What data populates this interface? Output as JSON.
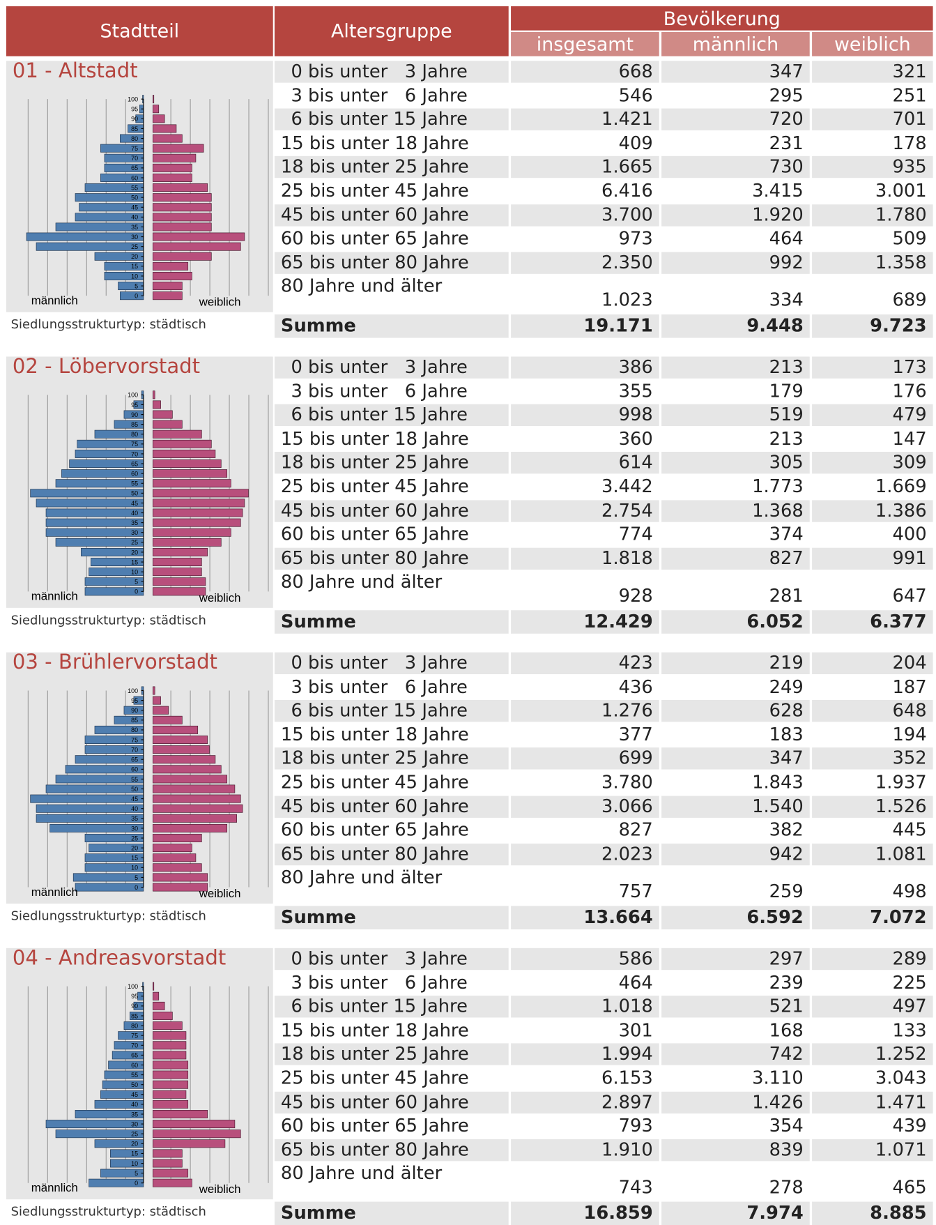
{
  "header": {
    "stadtteil": "Stadtteil",
    "altersgruppe": "Altersgruppe",
    "bevoelkerung": "Bevölkerung",
    "insgesamt": "insgesamt",
    "maennlich": "männlich",
    "weiblich": "weiblich"
  },
  "districts": [
    {
      "name": "01 - Altstadt",
      "structure": "Siedlungsstrukturtyp: städtisch",
      "rows": [
        [
          "0 bis unter   3 Jahre",
          "668",
          "347",
          "321"
        ],
        [
          "3 bis unter   6 Jahre",
          "546",
          "295",
          "251"
        ],
        [
          "6 bis unter 15 Jahre",
          "1.421",
          "720",
          "701"
        ],
        [
          "15 bis unter 18 Jahre",
          "409",
          "231",
          "178"
        ],
        [
          "18 bis unter 25 Jahre",
          "1.665",
          "730",
          "935"
        ],
        [
          "25 bis unter 45 Jahre",
          "6.416",
          "3.415",
          "3.001"
        ],
        [
          "45 bis unter 60 Jahre",
          "3.700",
          "1.920",
          "1.780"
        ],
        [
          "60 bis unter 65 Jahre",
          "973",
          "464",
          "509"
        ],
        [
          "65 bis unter 80 Jahre",
          "2.350",
          "992",
          "1.358"
        ],
        [
          "80 Jahre und älter",
          "1.023",
          "334",
          "689"
        ]
      ],
      "sum": [
        "Summe",
        "19.171",
        "9.448",
        "9.723"
      ],
      "pyramid": {
        "type": "pyramid",
        "male_label": "männlich",
        "female_label": "weiblich",
        "ylim": [
          0,
          100
        ],
        "yticks": [
          0,
          5,
          10,
          15,
          20,
          25,
          30,
          35,
          40,
          45,
          50,
          55,
          60,
          65,
          70,
          75,
          80,
          85,
          90,
          95,
          100
        ],
        "xlim": [
          0,
          6.5
        ],
        "xgrid": [
          1,
          2,
          3,
          4,
          5,
          6
        ],
        "male": [
          1.2,
          1.3,
          2,
          2,
          2.5,
          5.5,
          6,
          4.5,
          3.5,
          3.3,
          3.5,
          3,
          2.2,
          2,
          2,
          2.2,
          1.2,
          0.8,
          0.4,
          0.2,
          0.05
        ],
        "female": [
          1.5,
          1.5,
          2,
          1.8,
          3,
          4.5,
          4.7,
          3,
          3,
          3,
          3,
          2.8,
          2,
          2,
          2.2,
          2.6,
          1.5,
          1.2,
          0.6,
          0.3,
          0.05
        ]
      }
    },
    {
      "name": "02 - Löbervorstadt",
      "structure": "Siedlungsstrukturtyp: städtisch",
      "rows": [
        [
          "0 bis unter   3 Jahre",
          "386",
          "213",
          "173"
        ],
        [
          "3 bis unter   6 Jahre",
          "355",
          "179",
          "176"
        ],
        [
          "6 bis unter 15 Jahre",
          "998",
          "519",
          "479"
        ],
        [
          "15 bis unter 18 Jahre",
          "360",
          "213",
          "147"
        ],
        [
          "18 bis unter 25 Jahre",
          "614",
          "305",
          "309"
        ],
        [
          "25 bis unter 45 Jahre",
          "3.442",
          "1.773",
          "1.669"
        ],
        [
          "45 bis unter 60 Jahre",
          "2.754",
          "1.368",
          "1.386"
        ],
        [
          "60 bis unter 65 Jahre",
          "774",
          "374",
          "400"
        ],
        [
          "65 bis unter 80 Jahre",
          "1.818",
          "827",
          "991"
        ],
        [
          "80 Jahre und älter",
          "928",
          "281",
          "647"
        ]
      ],
      "sum": [
        "Summe",
        "12.429",
        "6.052",
        "6.377"
      ],
      "pyramid": {
        "type": "pyramid",
        "male_label": "männlich",
        "female_label": "weiblich",
        "ylim": [
          0,
          100
        ],
        "yticks": [
          0,
          5,
          10,
          15,
          20,
          25,
          30,
          35,
          40,
          45,
          50,
          55,
          60,
          65,
          70,
          75,
          80,
          85,
          90,
          95,
          100
        ],
        "xlim": [
          0,
          6.5
        ],
        "xgrid": [
          1,
          2,
          3,
          4,
          5,
          6
        ],
        "male": [
          3,
          3,
          2.8,
          2.7,
          3.2,
          4.5,
          5,
          5,
          5,
          5.5,
          5.8,
          4.5,
          4.2,
          3.8,
          3.5,
          3.4,
          2.5,
          1.5,
          1,
          0.5,
          0.1
        ],
        "female": [
          2.7,
          2.7,
          2.5,
          2.5,
          2.8,
          3.5,
          4,
          4.5,
          4.6,
          4.7,
          4.9,
          4,
          3.8,
          3.5,
          3.2,
          3,
          2.5,
          1.5,
          1,
          0.4,
          0.1
        ]
      }
    },
    {
      "name": "03 - Brühlervorstadt",
      "structure": "Siedlungsstrukturtyp: städtisch",
      "rows": [
        [
          "0 bis unter   3 Jahre",
          "423",
          "219",
          "204"
        ],
        [
          "3 bis unter   6 Jahre",
          "436",
          "249",
          "187"
        ],
        [
          "6 bis unter 15 Jahre",
          "1.276",
          "628",
          "648"
        ],
        [
          "15 bis unter 18 Jahre",
          "377",
          "183",
          "194"
        ],
        [
          "18 bis unter 25 Jahre",
          "699",
          "347",
          "352"
        ],
        [
          "25 bis unter 45 Jahre",
          "3.780",
          "1.843",
          "1.937"
        ],
        [
          "45 bis unter 60 Jahre",
          "3.066",
          "1.540",
          "1.526"
        ],
        [
          "60 bis unter 65 Jahre",
          "827",
          "382",
          "445"
        ],
        [
          "65 bis unter 80 Jahre",
          "2.023",
          "942",
          "1.081"
        ],
        [
          "80 Jahre und älter",
          "757",
          "259",
          "498"
        ]
      ],
      "sum": [
        "Summe",
        "13.664",
        "6.592",
        "7.072"
      ],
      "pyramid": {
        "type": "pyramid",
        "male_label": "männlich",
        "female_label": "weiblich",
        "ylim": [
          0,
          100
        ],
        "yticks": [
          0,
          5,
          10,
          15,
          20,
          25,
          30,
          35,
          40,
          45,
          50,
          55,
          60,
          65,
          70,
          75,
          80,
          85,
          90,
          95,
          100
        ],
        "xlim": [
          0,
          6.5
        ],
        "xgrid": [
          1,
          2,
          3,
          4,
          5,
          6
        ],
        "male": [
          3.5,
          3.6,
          3,
          3,
          2.8,
          3,
          4.8,
          5.5,
          5.5,
          5.8,
          5,
          4.5,
          4,
          3.5,
          3,
          3,
          2.5,
          1.5,
          1,
          0.5,
          0.1
        ],
        "female": [
          2.8,
          2.8,
          2.5,
          2.2,
          2,
          2.5,
          3.8,
          4.3,
          4.6,
          4.5,
          4.2,
          3.8,
          3.5,
          3.2,
          2.9,
          2.8,
          2.3,
          1.5,
          0.8,
          0.4,
          0.1
        ]
      }
    },
    {
      "name": "04 - Andreasvorstadt",
      "structure": "Siedlungsstrukturtyp: städtisch",
      "rows": [
        [
          "0 bis unter   3 Jahre",
          "586",
          "297",
          "289"
        ],
        [
          "3 bis unter   6 Jahre",
          "464",
          "239",
          "225"
        ],
        [
          "6 bis unter 15 Jahre",
          "1.018",
          "521",
          "497"
        ],
        [
          "15 bis unter 18 Jahre",
          "301",
          "168",
          "133"
        ],
        [
          "18 bis unter 25 Jahre",
          "1.994",
          "742",
          "1.252"
        ],
        [
          "25 bis unter 45 Jahre",
          "6.153",
          "3.110",
          "3.043"
        ],
        [
          "45 bis unter 60 Jahre",
          "2.897",
          "1.426",
          "1.471"
        ],
        [
          "60 bis unter 65 Jahre",
          "793",
          "354",
          "439"
        ],
        [
          "65 bis unter 80 Jahre",
          "1.910",
          "839",
          "1.071"
        ],
        [
          "80 Jahre und älter",
          "743",
          "278",
          "465"
        ]
      ],
      "sum": [
        "Summe",
        "16.859",
        "7.974",
        "8.885"
      ],
      "pyramid": {
        "type": "pyramid",
        "male_label": "männlich",
        "female_label": "weiblich",
        "ylim": [
          0,
          100
        ],
        "yticks": [
          0,
          5,
          10,
          15,
          20,
          25,
          30,
          35,
          40,
          45,
          50,
          55,
          60,
          65,
          70,
          75,
          80,
          85,
          90,
          95,
          100
        ],
        "xlim": [
          0,
          6.5
        ],
        "xgrid": [
          1,
          2,
          3,
          4,
          5,
          6
        ],
        "male": [
          2.8,
          2.2,
          1.7,
          1.7,
          2.5,
          4.5,
          5,
          3.5,
          2.5,
          2.2,
          2.1,
          2,
          1.8,
          1.6,
          1.5,
          1.3,
          1,
          0.7,
          0.5,
          0.3,
          0.05
        ],
        "female": [
          2,
          1.8,
          1.5,
          1.5,
          3.7,
          4.5,
          4.2,
          2.8,
          1.8,
          1.7,
          1.8,
          1.8,
          1.8,
          1.7,
          1.7,
          1.7,
          1.5,
          1,
          0.6,
          0.3,
          0.05
        ]
      }
    }
  ]
}
